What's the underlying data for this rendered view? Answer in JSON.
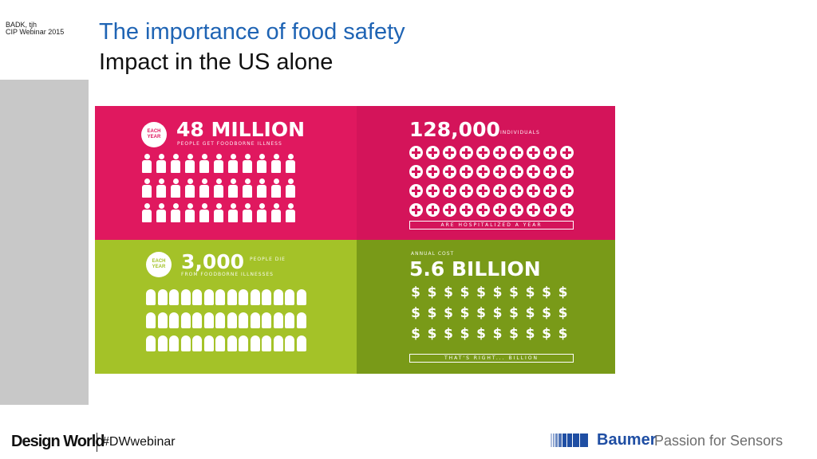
{
  "slide": {
    "meta_line1": "BADK, tjh",
    "meta_line2": "CIP Webinar 2015",
    "title": "The importance of food safety",
    "subtitle": "Impact in the US alone"
  },
  "infographic": {
    "colors": {
      "pink": "#e0185f",
      "magenta": "#d4145a",
      "lime": "#a4c228",
      "olive": "#799a18"
    },
    "illness": {
      "badge_line1": "EACH",
      "badge_line2": "YEAR",
      "headline": "48 MILLION",
      "caption": "PEOPLE GET FOODBORNE ILLNESS",
      "icon": "person-icon",
      "icon_count": 33
    },
    "hospitalized": {
      "headline": "128,000",
      "headline_suffix": "INDIVIDUALS",
      "caption": "ARE HOSPITALIZED A YEAR",
      "icon": "medical-cross-icon",
      "icon_count": 40
    },
    "deaths": {
      "badge_line1": "EACH",
      "badge_line2": "YEAR",
      "headline": "3,000",
      "caption_line1": "PEOPLE DIE",
      "caption_line2": "FROM FOODBORNE ILLNESSES",
      "icon": "coffin-icon",
      "icon_count": 42
    },
    "cost": {
      "kicker": "ANNUAL COST",
      "headline": "5.6 BILLION",
      "caption": "THAT'S RIGHT... BILLION",
      "icon": "dollar-sign-icon",
      "icon_count": 30,
      "symbol": "$"
    }
  },
  "footer": {
    "brand": "Design World",
    "hashtag": "#DWwebinar",
    "company": "Baumer",
    "slogan": "Passion for Sensors"
  }
}
